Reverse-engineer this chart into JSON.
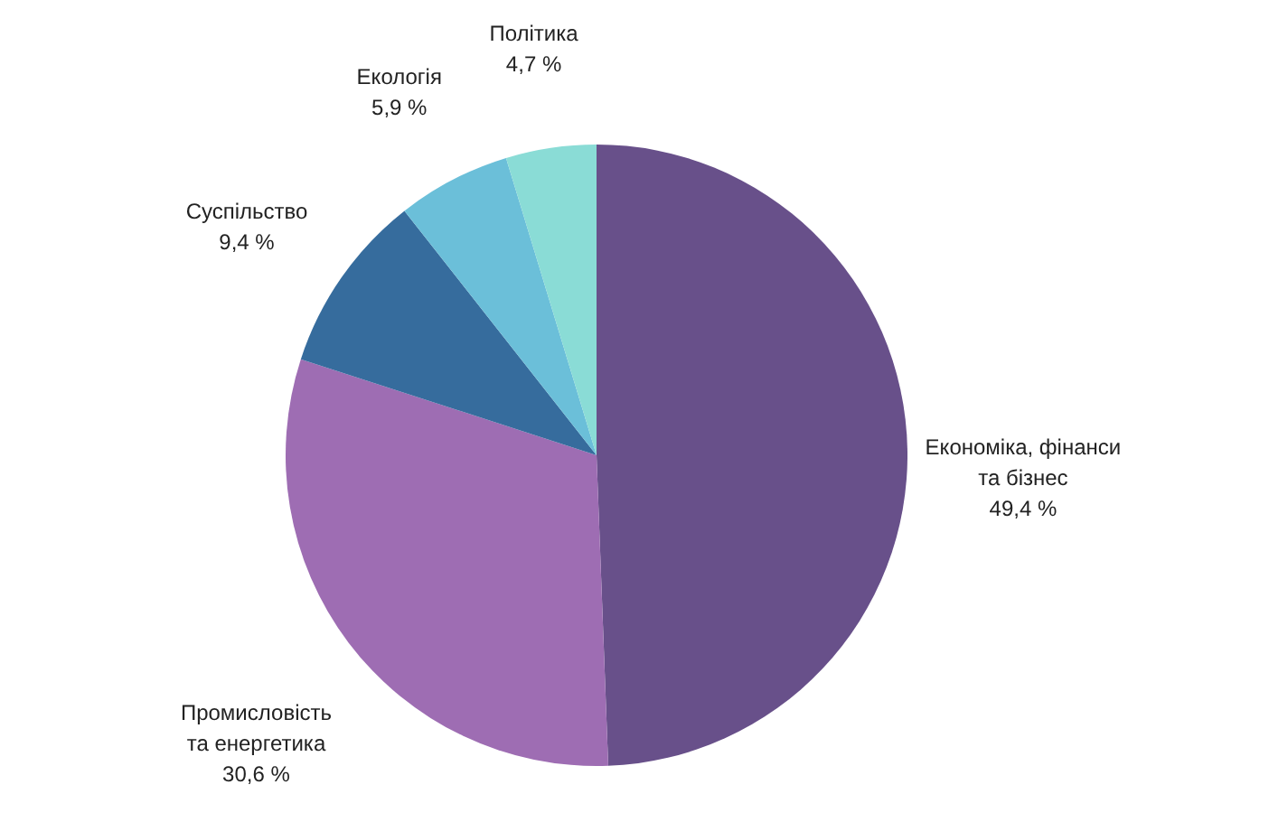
{
  "chart_data": {
    "type": "pie",
    "categories": [
      "Економіка, фінанси\nта бізнес",
      "Промисловість\nта енергетика",
      "Суспільство",
      "Екологія",
      "Політика"
    ],
    "values": [
      49.4,
      30.6,
      9.4,
      5.9,
      4.7
    ],
    "value_labels": [
      "49,4 %",
      "30,6 %",
      "9,4 %",
      "5,9 %",
      "4,7 %"
    ],
    "colors": [
      "#68508a",
      "#9e6db3",
      "#366c9d",
      "#6bbfd9",
      "#8adcd6"
    ]
  }
}
